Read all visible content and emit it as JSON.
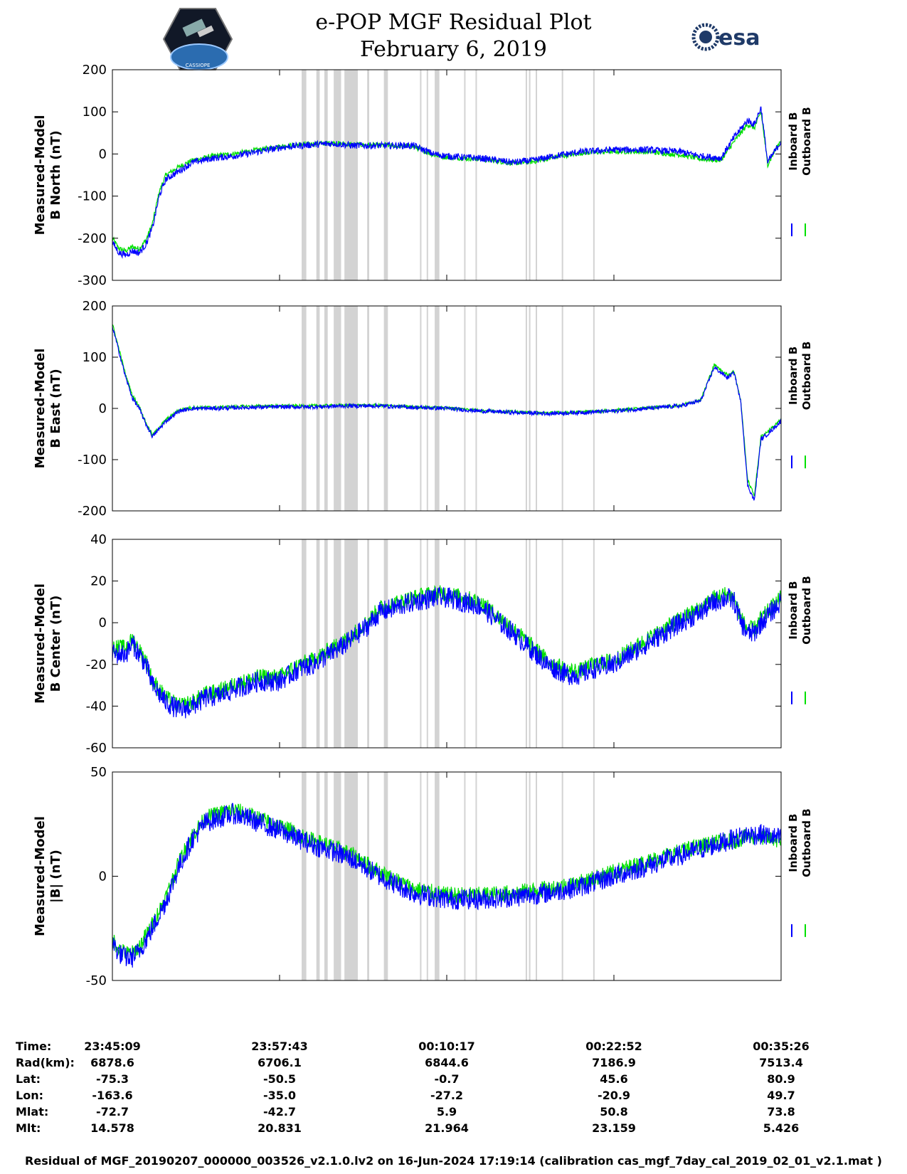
{
  "header": {
    "title_line1": "e-POP MGF Residual Plot",
    "title_line2": "February 6, 2019",
    "logos": {
      "left": "CASSIOPE",
      "right": "esa"
    }
  },
  "colors": {
    "inboard": "#0000ff",
    "outboard": "#00e000",
    "gaps": "#d3d3d3",
    "axes": "#000000"
  },
  "legend": {
    "inboard": "Inboard B",
    "outboard": "Outboard B"
  },
  "gap_bands": [
    [
      0.283,
      0.29
    ],
    [
      0.305,
      0.31
    ],
    [
      0.317,
      0.322
    ],
    [
      0.331,
      0.342
    ],
    [
      0.347,
      0.367
    ],
    [
      0.381,
      0.384
    ],
    [
      0.406,
      0.412
    ],
    [
      0.46,
      0.462
    ],
    [
      0.47,
      0.472
    ],
    [
      0.482,
      0.489
    ],
    [
      0.526,
      0.528
    ],
    [
      0.543,
      0.545
    ],
    [
      0.618,
      0.62
    ],
    [
      0.623,
      0.625
    ],
    [
      0.633,
      0.635
    ],
    [
      0.672,
      0.674
    ],
    [
      0.719,
      0.721
    ]
  ],
  "chart_data": [
    {
      "type": "line",
      "ylabel": [
        "Measured-Model",
        "B North (nT)"
      ],
      "ylim": [
        -300,
        200
      ],
      "yticks": [
        200,
        100,
        0,
        -100,
        -200,
        -300
      ],
      "x_fraction": [
        0,
        0.01,
        0.02,
        0.03,
        0.04,
        0.05,
        0.06,
        0.07,
        0.08,
        0.1,
        0.12,
        0.15,
        0.18,
        0.2,
        0.25,
        0.28,
        0.3,
        0.33,
        0.36,
        0.4,
        0.45,
        0.48,
        0.5,
        0.55,
        0.6,
        0.63,
        0.66,
        0.7,
        0.75,
        0.8,
        0.85,
        0.88,
        0.91,
        0.93,
        0.95,
        0.96,
        0.97,
        0.98,
        1.0
      ],
      "series": [
        {
          "name": "Inboard B",
          "noise": 8,
          "values": [
            -210,
            -235,
            -240,
            -230,
            -235,
            -215,
            -175,
            -100,
            -60,
            -40,
            -20,
            -10,
            -5,
            0,
            15,
            20,
            22,
            25,
            20,
            20,
            20,
            0,
            -5,
            -10,
            -20,
            -15,
            -5,
            5,
            10,
            10,
            5,
            -5,
            -10,
            40,
            80,
            70,
            110,
            -20,
            30
          ]
        },
        {
          "name": "Outboard B",
          "noise": 6,
          "values": [
            -200,
            -225,
            -230,
            -220,
            -225,
            -205,
            -165,
            -90,
            -50,
            -30,
            -15,
            -5,
            0,
            5,
            18,
            22,
            24,
            26,
            22,
            21,
            18,
            -2,
            -8,
            -12,
            -22,
            -18,
            -8,
            2,
            6,
            5,
            -2,
            -12,
            -15,
            30,
            70,
            62,
            100,
            -25,
            35
          ]
        }
      ]
    },
    {
      "type": "line",
      "ylabel": [
        "Measured-Model",
        "B East (nT)"
      ],
      "ylim": [
        -200,
        200
      ],
      "yticks": [
        200,
        100,
        0,
        -100,
        -200
      ],
      "x_fraction": [
        0,
        0.01,
        0.02,
        0.03,
        0.04,
        0.05,
        0.06,
        0.08,
        0.1,
        0.12,
        0.15,
        0.2,
        0.25,
        0.3,
        0.35,
        0.4,
        0.45,
        0.5,
        0.55,
        0.6,
        0.65,
        0.7,
        0.75,
        0.8,
        0.85,
        0.88,
        0.9,
        0.92,
        0.93,
        0.94,
        0.95,
        0.96,
        0.97,
        0.98,
        1.0
      ],
      "series": [
        {
          "name": "Inboard B",
          "noise": 4,
          "values": [
            160,
            110,
            60,
            20,
            0,
            -30,
            -55,
            -25,
            -5,
            0,
            0,
            2,
            3,
            3,
            5,
            5,
            2,
            0,
            -5,
            -8,
            -10,
            -8,
            -5,
            0,
            5,
            15,
            80,
            60,
            70,
            10,
            -150,
            -180,
            -60,
            -50,
            -25
          ]
        },
        {
          "name": "Outboard B",
          "noise": 3,
          "values": [
            165,
            115,
            65,
            25,
            5,
            -28,
            -52,
            -22,
            -3,
            2,
            2,
            4,
            5,
            5,
            6,
            6,
            3,
            1,
            -4,
            -7,
            -9,
            -7,
            -4,
            1,
            6,
            17,
            85,
            65,
            72,
            12,
            -140,
            -170,
            -55,
            -45,
            -22
          ]
        }
      ]
    },
    {
      "type": "line",
      "ylabel": [
        "Measured-Model",
        "B Center (nT)"
      ],
      "ylim": [
        -60,
        40
      ],
      "yticks": [
        40,
        20,
        0,
        -20,
        -40,
        -60
      ],
      "x_fraction": [
        0,
        0.02,
        0.03,
        0.05,
        0.06,
        0.08,
        0.1,
        0.12,
        0.14,
        0.16,
        0.18,
        0.2,
        0.22,
        0.25,
        0.28,
        0.3,
        0.35,
        0.38,
        0.4,
        0.45,
        0.48,
        0.5,
        0.55,
        0.58,
        0.6,
        0.65,
        0.68,
        0.7,
        0.72,
        0.75,
        0.8,
        0.85,
        0.88,
        0.9,
        0.92,
        0.93,
        0.94,
        0.95,
        0.96,
        0.97,
        1.0
      ],
      "series": [
        {
          "name": "Inboard B",
          "noise": 5,
          "values": [
            -15,
            -15,
            -10,
            -20,
            -30,
            -38,
            -42,
            -40,
            -36,
            -35,
            -32,
            -30,
            -28,
            -28,
            -22,
            -20,
            -10,
            -2,
            5,
            10,
            12,
            12,
            8,
            0,
            -5,
            -20,
            -25,
            -25,
            -22,
            -20,
            -10,
            0,
            5,
            10,
            12,
            10,
            0,
            -5,
            -5,
            0,
            10
          ]
        },
        {
          "name": "Outboard B",
          "noise": 4,
          "values": [
            -12,
            -12,
            -8,
            -18,
            -28,
            -36,
            -40,
            -38,
            -34,
            -33,
            -30,
            -28,
            -26,
            -26,
            -20,
            -18,
            -8,
            0,
            7,
            12,
            14,
            14,
            10,
            2,
            -3,
            -18,
            -23,
            -23,
            -20,
            -18,
            -8,
            2,
            7,
            12,
            14,
            12,
            2,
            -3,
            -3,
            2,
            12
          ]
        }
      ]
    },
    {
      "type": "line",
      "ylabel": [
        "Measured-Model",
        "|B| (nT)"
      ],
      "ylim": [
        -50,
        50
      ],
      "yticks": [
        50,
        0,
        -50
      ],
      "x_fraction": [
        0,
        0.01,
        0.02,
        0.03,
        0.04,
        0.06,
        0.08,
        0.1,
        0.12,
        0.14,
        0.16,
        0.18,
        0.2,
        0.25,
        0.3,
        0.33,
        0.36,
        0.4,
        0.45,
        0.5,
        0.55,
        0.6,
        0.65,
        0.7,
        0.75,
        0.8,
        0.85,
        0.9,
        0.93,
        0.95,
        0.97,
        1.0
      ],
      "series": [
        {
          "name": "Inboard B",
          "noise": 5,
          "values": [
            -32,
            -37,
            -39,
            -39,
            -36,
            -25,
            -12,
            5,
            18,
            26,
            28,
            30,
            28,
            22,
            15,
            12,
            8,
            0,
            -8,
            -11,
            -11,
            -10,
            -8,
            -5,
            0,
            5,
            10,
            15,
            18,
            20,
            20,
            18
          ]
        },
        {
          "name": "Outboard B",
          "noise": 4,
          "values": [
            -30,
            -35,
            -37,
            -37,
            -34,
            -23,
            -10,
            7,
            20,
            28,
            30,
            32,
            30,
            24,
            17,
            14,
            10,
            2,
            -6,
            -9,
            -9,
            -8,
            -6,
            -3,
            2,
            7,
            12,
            16,
            17,
            19,
            19,
            17
          ]
        }
      ]
    }
  ],
  "x_axis": {
    "ticks_fraction": [
      0,
      0.25,
      0.5,
      0.75,
      1.0
    ]
  },
  "info_table": {
    "rows": [
      {
        "label": "Time:",
        "values": [
          "23:45:09",
          "23:57:43",
          "00:10:17",
          "00:22:52",
          "00:35:26"
        ]
      },
      {
        "label": "Rad(km):",
        "values": [
          "6878.6",
          "6706.1",
          "6844.6",
          "7186.9",
          "7513.4"
        ]
      },
      {
        "label": "Lat:",
        "values": [
          "-75.3",
          "-50.5",
          "-0.7",
          "45.6",
          "80.9"
        ]
      },
      {
        "label": "Lon:",
        "values": [
          "-163.6",
          "-35.0",
          "-27.2",
          "-20.9",
          "49.7"
        ]
      },
      {
        "label": "Mlat:",
        "values": [
          "-72.7",
          "-42.7",
          "5.9",
          "50.8",
          "73.8"
        ]
      },
      {
        "label": "Mlt:",
        "values": [
          "14.578",
          "20.831",
          "21.964",
          "23.159",
          "5.426"
        ]
      }
    ]
  },
  "footer": "Residual of MGF_20190207_000000_003526_v2.1.0.lv2 on 16-Jun-2024 17:19:14 (calibration cas_mgf_7day_cal_2019_02_01_v2.1.mat )"
}
